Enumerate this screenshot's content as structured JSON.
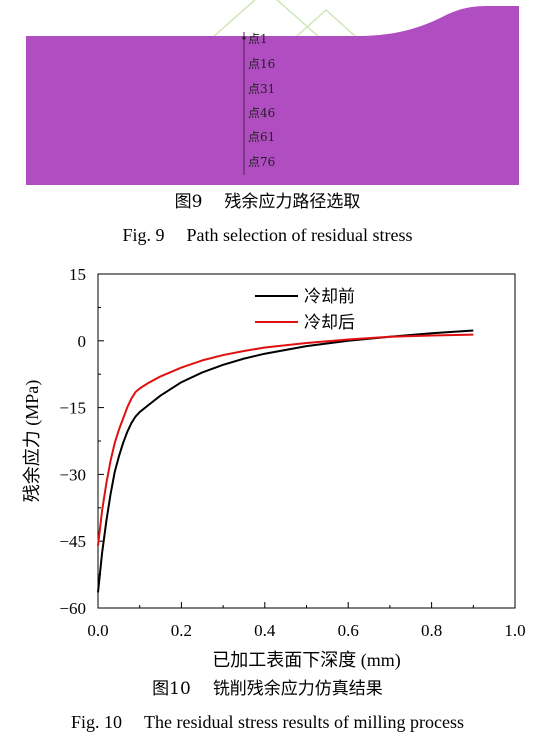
{
  "figure9": {
    "points": [
      "点1",
      "点16",
      "点31",
      "点46",
      "点61",
      "点76"
    ],
    "caption_zh_num": "图9",
    "caption_zh_text": "残余应力路径选取",
    "caption_en_num": "Fig. 9",
    "caption_en_text": "Path selection of residual stress",
    "colors": {
      "fill": "#b04dc0",
      "watermark": "#cfe6b8"
    }
  },
  "figure10": {
    "caption_zh_num": "图10",
    "caption_zh_text": "铣削残余应力仿真结果",
    "caption_en_num": "Fig. 10",
    "caption_en_text": "The residual stress results of milling process"
  },
  "chart_data": {
    "type": "line",
    "xlabel": "已加工表面下深度 (mm)",
    "ylabel": "残余应力 (MPa)",
    "xlim": [
      0.0,
      1.0
    ],
    "ylim": [
      -60,
      15
    ],
    "xticks": [
      "0.0",
      "0.2",
      "0.4",
      "0.6",
      "0.8",
      "1.0"
    ],
    "xtick_values": [
      0.0,
      0.2,
      0.4,
      0.6,
      0.8,
      1.0
    ],
    "yticks": [
      "15",
      "0",
      "−15",
      "−30",
      "−45",
      "−60"
    ],
    "ytick_values": [
      15,
      0,
      -15,
      -30,
      -45,
      -60
    ],
    "grid": false,
    "legend_position": "top-center",
    "series": [
      {
        "name": "冷却前",
        "color": "#000000",
        "x": [
          0.0,
          0.005,
          0.01,
          0.02,
          0.03,
          0.04,
          0.05,
          0.06,
          0.07,
          0.08,
          0.09,
          0.1,
          0.12,
          0.15,
          0.2,
          0.25,
          0.3,
          0.35,
          0.4,
          0.5,
          0.6,
          0.7,
          0.8,
          0.9
        ],
        "y": [
          -56.5,
          -52,
          -47.5,
          -40.5,
          -34.5,
          -29.5,
          -26,
          -23,
          -20.5,
          -18.5,
          -17,
          -16,
          -14.5,
          -12.3,
          -9.3,
          -7.1,
          -5.4,
          -4.0,
          -2.9,
          -1.2,
          0.0,
          0.9,
          1.7,
          2.3
        ]
      },
      {
        "name": "冷却后",
        "color": "#e01010",
        "x": [
          0.0,
          0.005,
          0.01,
          0.02,
          0.03,
          0.04,
          0.05,
          0.06,
          0.07,
          0.08,
          0.09,
          0.1,
          0.12,
          0.15,
          0.2,
          0.25,
          0.3,
          0.35,
          0.4,
          0.5,
          0.6,
          0.7,
          0.8,
          0.9
        ],
        "y": [
          -46,
          -42,
          -38,
          -32,
          -27,
          -23,
          -20,
          -17.5,
          -15,
          -13,
          -11.5,
          -10.7,
          -9.5,
          -8,
          -6,
          -4.4,
          -3.2,
          -2.3,
          -1.5,
          -0.5,
          0.3,
          0.9,
          1.2,
          1.4
        ]
      }
    ]
  }
}
